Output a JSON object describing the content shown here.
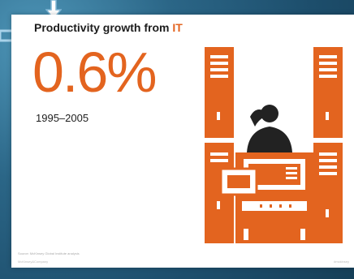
{
  "slide": {
    "title_prefix": "Productivity growth from ",
    "title_accent": "IT",
    "big_value": "0.6%",
    "years": "1995–2005",
    "source": "Source: McKinsey Global Institute analysis",
    "brand": "McKinsey&Company",
    "brand_right": "#mckinsey"
  },
  "colors": {
    "accent": "#e3641f",
    "text": "#1d1d1d",
    "background": "#2b6687"
  },
  "icons": {
    "illustration": "office-worker-with-file-cabinets-icon",
    "cursor": "down-arrow-icon",
    "frame": "bracket-icon"
  }
}
